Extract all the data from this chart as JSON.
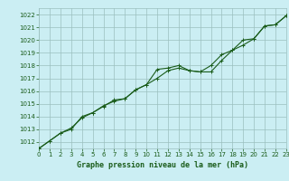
{
  "title": "Graphe pression niveau de la mer (hPa)",
  "bg_color": "#cbeef3",
  "grid_color": "#9bbfbf",
  "line_color": "#1a5c1a",
  "marker_color": "#1a5c1a",
  "x_values": [
    0,
    1,
    2,
    3,
    4,
    5,
    6,
    7,
    8,
    9,
    10,
    11,
    12,
    13,
    14,
    15,
    16,
    17,
    18,
    19,
    20,
    21,
    22,
    23
  ],
  "y_line1": [
    1011.5,
    1012.1,
    1012.7,
    1013.1,
    1013.9,
    1014.3,
    1014.8,
    1015.3,
    1015.4,
    1016.1,
    1016.5,
    1017.0,
    1017.6,
    1017.8,
    1017.6,
    1017.5,
    1017.5,
    1018.4,
    1019.2,
    1019.6,
    1020.1,
    1021.1,
    1021.2,
    1021.9
  ],
  "y_line2": [
    1011.5,
    1012.1,
    1012.7,
    1013.0,
    1014.0,
    1014.3,
    1014.85,
    1015.2,
    1015.4,
    1016.1,
    1016.5,
    1017.7,
    1017.8,
    1018.0,
    1017.6,
    1017.5,
    1018.0,
    1018.85,
    1019.2,
    1020.0,
    1020.1,
    1021.1,
    1021.2,
    1021.9
  ],
  "ylim": [
    1011.5,
    1022.5
  ],
  "yticks": [
    1012,
    1013,
    1014,
    1015,
    1016,
    1017,
    1018,
    1019,
    1020,
    1021,
    1022
  ],
  "xlim": [
    0,
    23
  ],
  "xticks": [
    0,
    1,
    2,
    3,
    4,
    5,
    6,
    7,
    8,
    9,
    10,
    11,
    12,
    13,
    14,
    15,
    16,
    17,
    18,
    19,
    20,
    21,
    22,
    23
  ],
  "tick_fontsize": 5,
  "label_fontsize": 6,
  "linewidth": 0.8,
  "markersize": 3.0
}
